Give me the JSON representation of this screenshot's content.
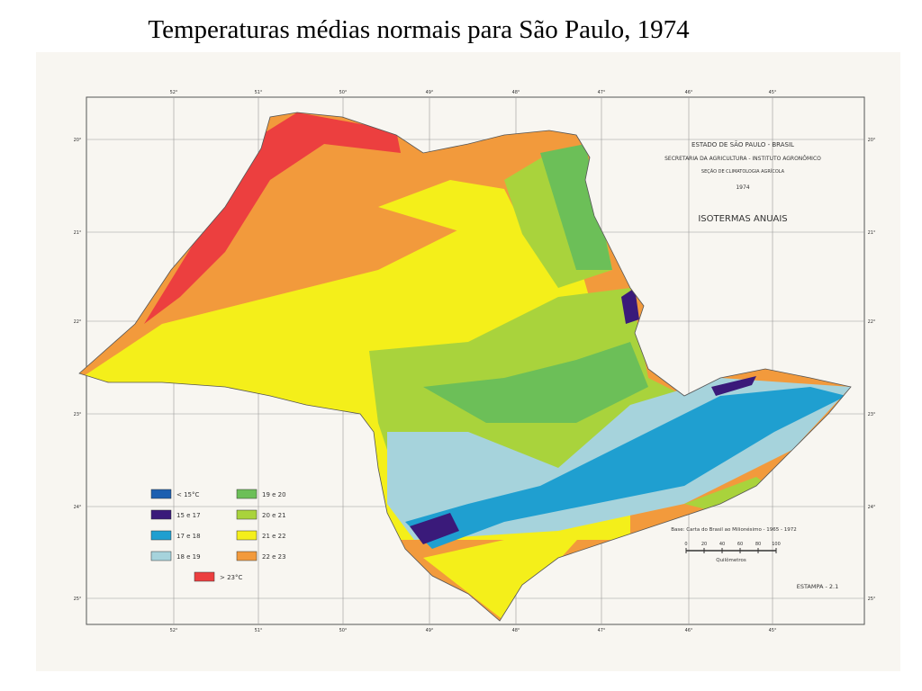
{
  "title": "Temperaturas médias normais para São Paulo, 1974",
  "map_header": {
    "state": "ESTADO DE SÃO PAULO - BRASIL",
    "agency": "SECRETARIA DA AGRICULTURA - INSTITUTO AGRONÔMICO",
    "section": "SEÇÃO DE CLIMATOLOGIA AGRÍCOLA",
    "year": "1974",
    "subject": "ISOTERMAS ANUAIS"
  },
  "legend": [
    {
      "label": "< 15°C",
      "color": "#1c5fb0"
    },
    {
      "label": "15 e 17",
      "color": "#3a1a7a"
    },
    {
      "label": "17 e 18",
      "color": "#1f9fd0"
    },
    {
      "label": "18 e 19",
      "color": "#a6d3dc"
    },
    {
      "label": "19 e 20",
      "color": "#6cbf58"
    },
    {
      "label": "20 e 21",
      "color": "#a9d33c"
    },
    {
      "label": "21 e 22",
      "color": "#f4ef1a"
    },
    {
      "label": "22 e 23",
      "color": "#f29a3c"
    },
    {
      "label": "> 23°C",
      "color": "#ec3f3f"
    }
  ],
  "longitudes": [
    "52°",
    "51°",
    "50°",
    "49°",
    "48°",
    "47°",
    "46°",
    "45°"
  ],
  "latitudes": [
    "20°",
    "21°",
    "22°",
    "23°",
    "24°",
    "25°"
  ],
  "base_note": "Base: Carta do Brasil ao Milionésimo - 1965 - 1972",
  "scale": {
    "ticks": [
      0,
      20,
      40,
      60,
      80,
      100
    ],
    "unit": "Quilômetros"
  },
  "plate": "ESTAMPA - 2.1"
}
